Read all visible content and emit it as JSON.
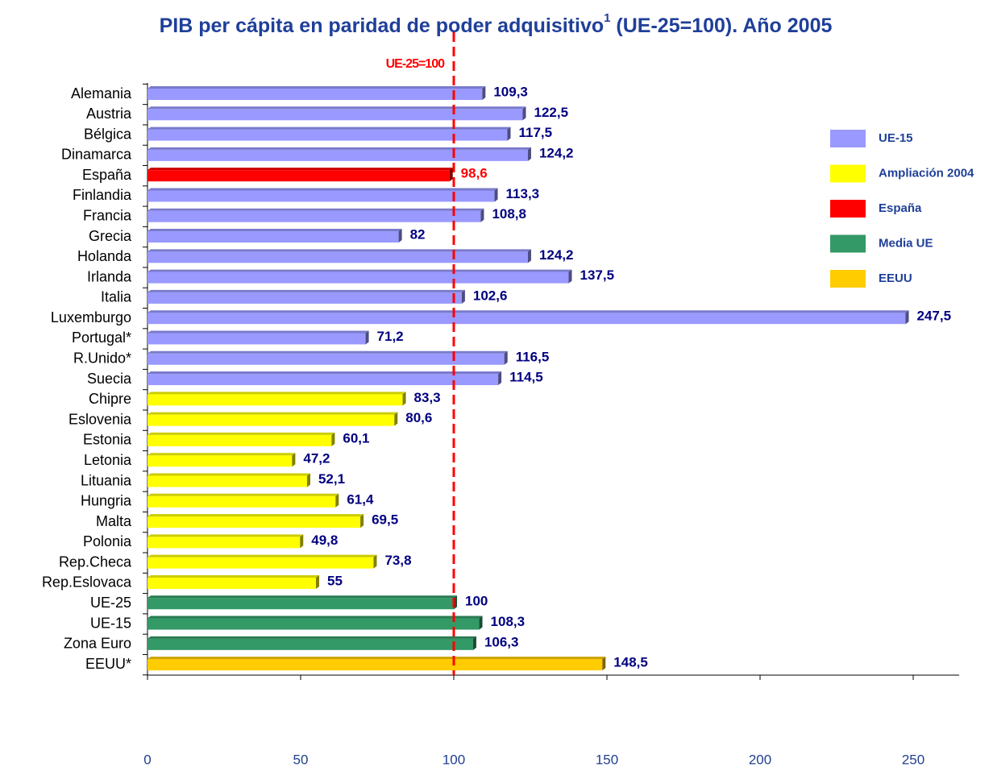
{
  "chart_data": {
    "type": "bar",
    "orientation": "horizontal",
    "title": "PIB per cápita en paridad de poder adquisitivo",
    "title_note": "1",
    "title_end": " (UE-25=100). Año 2005",
    "categories": [
      "Alemania",
      "Austria",
      "Bélgica",
      "Dinamarca",
      "España",
      "Finlandia",
      "Francia",
      "Grecia",
      "Holanda",
      "Irlanda",
      "Italia",
      "Luxemburgo",
      "Portugal*",
      "R.Unido*",
      "Suecia",
      "Chipre",
      "Eslovenia",
      "Estonia",
      "Letonia",
      "Lituania",
      "Hungria",
      "Malta",
      "Polonia",
      "Rep.Checa",
      "Rep.Eslovaca",
      "UE-25",
      "UE-15",
      "Zona Euro",
      "EEUU*"
    ],
    "series": [
      {
        "name": "UE-15",
        "color": "#9999ff",
        "values": [
          109.3,
          122.5,
          117.5,
          124.2,
          null,
          113.3,
          108.8,
          82,
          124.2,
          137.5,
          102.6,
          247.5,
          71.2,
          116.5,
          114.5,
          null,
          null,
          null,
          null,
          null,
          null,
          null,
          null,
          null,
          null,
          null,
          null,
          null,
          null
        ],
        "value_labels": [
          "109,3",
          "122,5",
          "117,5",
          "124,2",
          null,
          "113,3",
          "108,8",
          "82",
          "124,2",
          "137,5",
          "102,6",
          "247,5",
          "71,2",
          "116,5",
          "114,5",
          null,
          null,
          null,
          null,
          null,
          null,
          null,
          null,
          null,
          null,
          null,
          null,
          null,
          null
        ]
      },
      {
        "name": "Ampliación 2004",
        "color": "#ffff00",
        "values": [
          null,
          null,
          null,
          null,
          null,
          null,
          null,
          null,
          null,
          null,
          null,
          null,
          null,
          null,
          null,
          83.3,
          80.6,
          60.1,
          47.2,
          52.1,
          61.4,
          69.5,
          49.8,
          73.8,
          55,
          null,
          null,
          null,
          null
        ],
        "value_labels": [
          null,
          null,
          null,
          null,
          null,
          null,
          null,
          null,
          null,
          null,
          null,
          null,
          null,
          null,
          null,
          "83,3",
          "80,6",
          "60,1",
          "47,2",
          "52,1",
          "61,4",
          "69,5",
          "49,8",
          "73,8",
          "55",
          null,
          null,
          null,
          null
        ]
      },
      {
        "name": "España",
        "color": "#ff0000",
        "label_color": "#ff0000",
        "values": [
          null,
          null,
          null,
          null,
          98.6,
          null,
          null,
          null,
          null,
          null,
          null,
          null,
          null,
          null,
          null,
          null,
          null,
          null,
          null,
          null,
          null,
          null,
          null,
          null,
          null,
          null,
          null,
          null,
          null
        ],
        "value_labels": [
          null,
          null,
          null,
          null,
          "98,6",
          null,
          null,
          null,
          null,
          null,
          null,
          null,
          null,
          null,
          null,
          null,
          null,
          null,
          null,
          null,
          null,
          null,
          null,
          null,
          null,
          null,
          null,
          null,
          null
        ]
      },
      {
        "name": "Media UE",
        "color": "#339966",
        "values": [
          null,
          null,
          null,
          null,
          null,
          null,
          null,
          null,
          null,
          null,
          null,
          null,
          null,
          null,
          null,
          null,
          null,
          null,
          null,
          null,
          null,
          null,
          null,
          null,
          null,
          100,
          108.3,
          106.3,
          null
        ],
        "value_labels": [
          null,
          null,
          null,
          null,
          null,
          null,
          null,
          null,
          null,
          null,
          null,
          null,
          null,
          null,
          null,
          null,
          null,
          null,
          null,
          null,
          null,
          null,
          null,
          null,
          null,
          "100",
          "108,3",
          "106,3",
          null
        ]
      },
      {
        "name": "EEUU",
        "color": "#ffcc00",
        "values": [
          null,
          null,
          null,
          null,
          null,
          null,
          null,
          null,
          null,
          null,
          null,
          null,
          null,
          null,
          null,
          null,
          null,
          null,
          null,
          null,
          null,
          null,
          null,
          null,
          null,
          null,
          null,
          null,
          148.5
        ],
        "value_labels": [
          null,
          null,
          null,
          null,
          null,
          null,
          null,
          null,
          null,
          null,
          null,
          null,
          null,
          null,
          null,
          null,
          null,
          null,
          null,
          null,
          null,
          null,
          null,
          null,
          null,
          null,
          null,
          null,
          "148,5"
        ]
      }
    ],
    "label_color": "#000080",
    "xlim": [
      0,
      250
    ],
    "xticks": [
      0,
      50,
      100,
      150,
      200,
      250
    ],
    "reference_line": {
      "value": 100,
      "label": "UE-25=100",
      "color": "#ff0000"
    },
    "legend": "right"
  }
}
